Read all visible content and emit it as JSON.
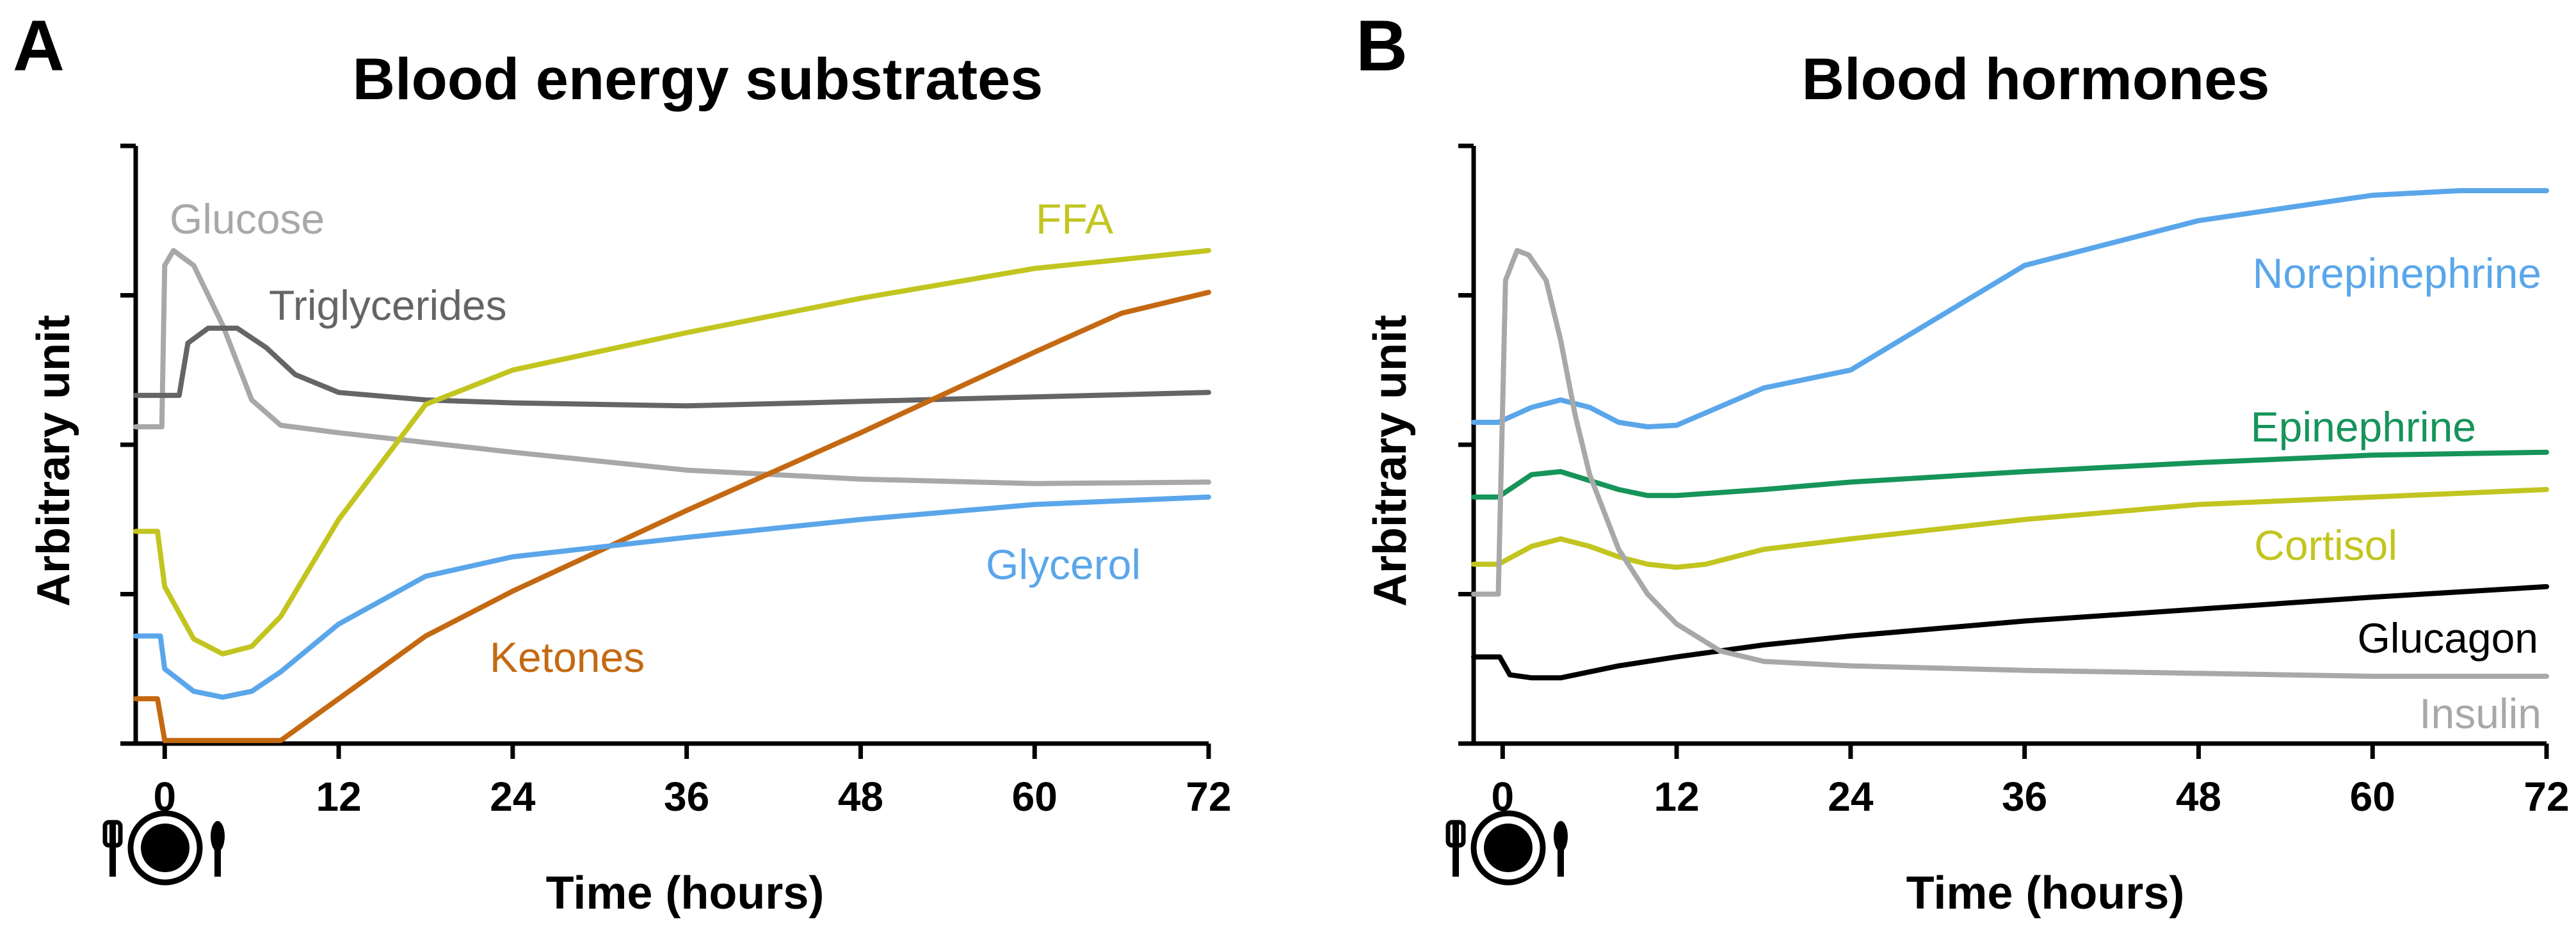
{
  "chart_data": [
    {
      "panel": "A",
      "type": "line",
      "title": "Blood energy substrates",
      "xlabel": "Time (hours)",
      "ylabel": "Arbitrary unit",
      "xlim": [
        -2,
        72
      ],
      "ylim": [
        0,
        4
      ],
      "xticks": [
        0,
        12,
        24,
        36,
        48,
        60,
        72
      ],
      "yticks": [
        0,
        1,
        2,
        3,
        4
      ],
      "icon": "meal-plate-icon",
      "series": [
        {
          "name": "Glucose",
          "color": "#a8a8a8",
          "x": [
            -2,
            -0.2,
            0,
            0.6,
            2,
            4,
            6,
            8,
            12,
            24,
            36,
            48,
            60,
            72
          ],
          "y": [
            2.12,
            2.12,
            3.2,
            3.3,
            3.2,
            2.8,
            2.3,
            2.13,
            2.08,
            1.95,
            1.83,
            1.77,
            1.74,
            1.75
          ]
        },
        {
          "name": "Triglycerides",
          "color": "#656565",
          "x": [
            -2,
            1,
            1.6,
            3,
            5,
            7,
            9,
            12,
            18,
            24,
            36,
            48,
            60,
            72
          ],
          "y": [
            2.33,
            2.33,
            2.68,
            2.78,
            2.78,
            2.65,
            2.47,
            2.35,
            2.3,
            2.28,
            2.26,
            2.29,
            2.32,
            2.35
          ]
        },
        {
          "name": "FFA",
          "color": "#c2c51f",
          "x": [
            -2,
            -0.5,
            0,
            2,
            4,
            6,
            8,
            12,
            18,
            24,
            36,
            48,
            60,
            72
          ],
          "y": [
            1.42,
            1.42,
            1.05,
            0.7,
            0.6,
            0.65,
            0.85,
            1.5,
            2.27,
            2.5,
            2.75,
            2.98,
            3.18,
            3.3
          ]
        },
        {
          "name": "Ketones",
          "color": "#c46912",
          "x": [
            -2,
            -0.5,
            0,
            8,
            12,
            18,
            24,
            36,
            48,
            60,
            66,
            72
          ],
          "y": [
            0.3,
            0.3,
            0.02,
            0.02,
            0.3,
            0.72,
            1.02,
            1.56,
            2.08,
            2.62,
            2.88,
            3.02
          ]
        },
        {
          "name": "Glycerol",
          "color": "#5aa6ea",
          "x": [
            -2,
            -0.3,
            0,
            2,
            4,
            6,
            8,
            12,
            18,
            24,
            36,
            48,
            60,
            72
          ],
          "y": [
            0.72,
            0.72,
            0.5,
            0.35,
            0.31,
            0.35,
            0.48,
            0.8,
            1.12,
            1.25,
            1.38,
            1.5,
            1.6,
            1.65
          ]
        }
      ]
    },
    {
      "panel": "B",
      "type": "line",
      "title": "Blood hormones",
      "xlabel": "Time (hours)",
      "ylabel": "Arbitrary unit",
      "xlim": [
        -2,
        72
      ],
      "ylim": [
        0,
        4
      ],
      "xticks": [
        0,
        12,
        24,
        36,
        48,
        60,
        72
      ],
      "yticks": [
        0,
        1,
        2,
        3,
        4
      ],
      "icon": "meal-plate-icon",
      "series": [
        {
          "name": "Norepinephrine",
          "color": "#5aa6ea",
          "x": [
            -2,
            -0.3,
            2,
            4,
            6,
            8,
            10,
            12,
            18,
            24,
            36,
            48,
            60,
            66,
            72
          ],
          "y": [
            2.15,
            2.15,
            2.25,
            2.3,
            2.25,
            2.15,
            2.12,
            2.13,
            2.38,
            2.5,
            3.2,
            3.5,
            3.67,
            3.7,
            3.7
          ]
        },
        {
          "name": "Epinephrine",
          "color": "#16945a",
          "x": [
            -2,
            -0.3,
            2,
            4,
            6,
            8,
            10,
            12,
            18,
            24,
            36,
            48,
            60,
            72
          ],
          "y": [
            1.65,
            1.65,
            1.8,
            1.82,
            1.76,
            1.7,
            1.66,
            1.66,
            1.7,
            1.75,
            1.82,
            1.88,
            1.93,
            1.95
          ]
        },
        {
          "name": "Cortisol",
          "color": "#c2c51f",
          "x": [
            -2,
            -0.3,
            2,
            4,
            6,
            8,
            10,
            12,
            14,
            18,
            24,
            36,
            48,
            60,
            72
          ],
          "y": [
            1.2,
            1.2,
            1.32,
            1.37,
            1.32,
            1.25,
            1.2,
            1.18,
            1.2,
            1.3,
            1.37,
            1.5,
            1.6,
            1.65,
            1.7
          ]
        },
        {
          "name": "Glucagon",
          "color": "#000000",
          "x": [
            -2,
            -0.2,
            0.5,
            2,
            4,
            6,
            8,
            12,
            18,
            24,
            36,
            48,
            60,
            72
          ],
          "y": [
            0.58,
            0.58,
            0.46,
            0.44,
            0.44,
            0.48,
            0.52,
            0.58,
            0.66,
            0.72,
            0.82,
            0.9,
            0.98,
            1.05
          ]
        },
        {
          "name": "Insulin",
          "color": "#a8a8a8",
          "x": [
            -2,
            -0.3,
            0.2,
            1,
            1.8,
            3,
            4,
            5,
            6,
            8,
            10,
            12,
            15,
            18,
            24,
            36,
            48,
            60,
            72
          ],
          "y": [
            1.0,
            1.0,
            3.1,
            3.3,
            3.27,
            3.1,
            2.7,
            2.2,
            1.8,
            1.3,
            1.0,
            0.8,
            0.62,
            0.55,
            0.52,
            0.49,
            0.47,
            0.45,
            0.45
          ]
        }
      ]
    }
  ]
}
